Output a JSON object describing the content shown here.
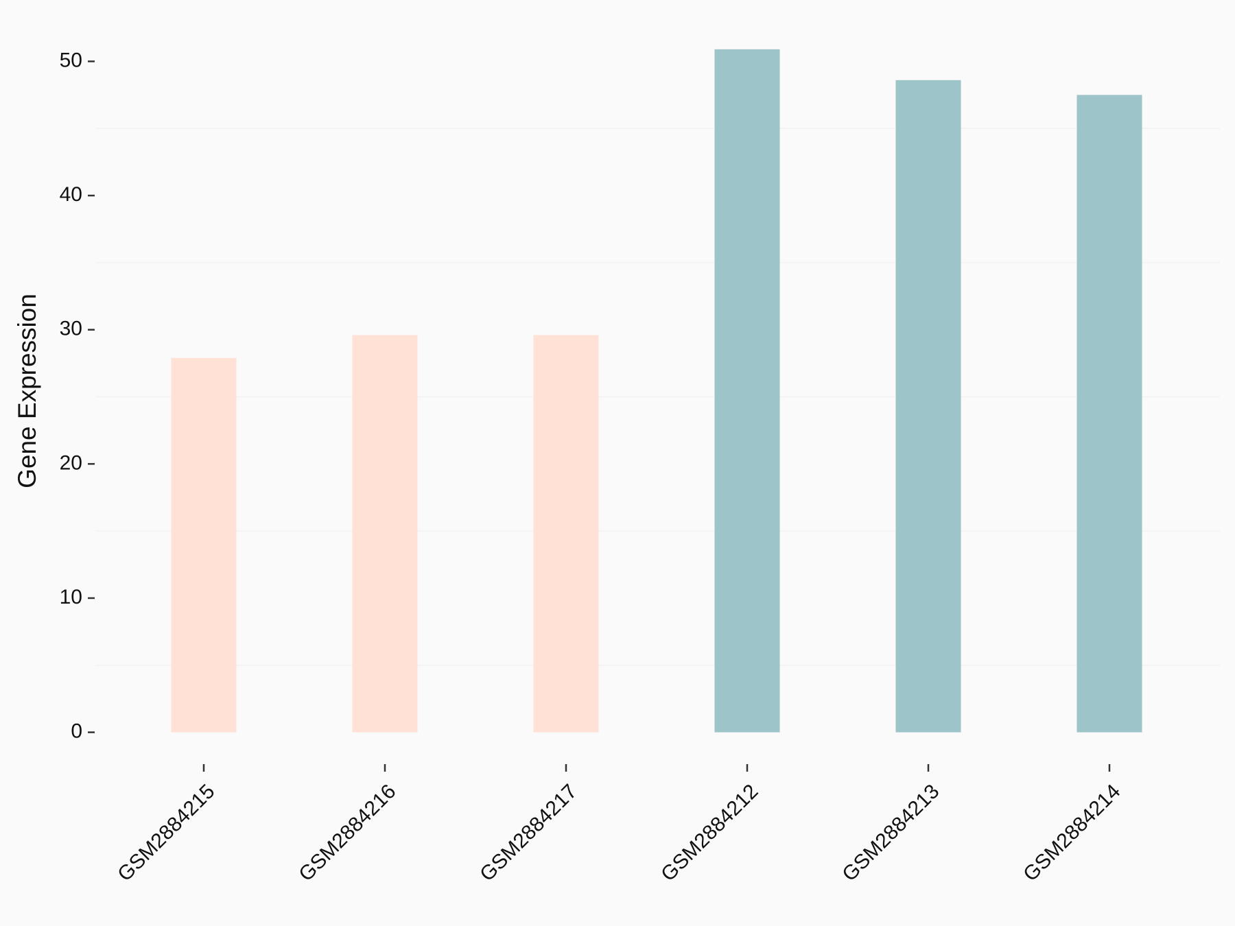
{
  "chart_data": {
    "type": "bar",
    "y_label": "Gene Expression",
    "categories": [
      "GSM2884215",
      "GSM2884216",
      "GSM2884217",
      "GSM2884212",
      "GSM2884213",
      "GSM2884214"
    ],
    "values": [
      27.9,
      29.6,
      29.6,
      50.9,
      48.6,
      47.5
    ],
    "colors": [
      "#FFE1D6",
      "#FFE1D6",
      "#FFE1D6",
      "#9DC4C8",
      "#9DC4C8",
      "#9DC4C8"
    ],
    "ylim": [
      -2.5,
      53.5
    ],
    "yticks": [
      0,
      10,
      20,
      30,
      40,
      50
    ],
    "minor_yticks": [
      5,
      15,
      25,
      35,
      45
    ],
    "grid": true
  }
}
